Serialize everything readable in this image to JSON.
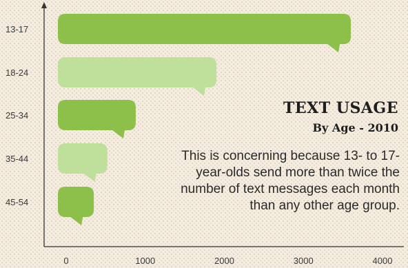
{
  "chart_data": {
    "type": "bar",
    "orientation": "horizontal",
    "title": "TEXT USAGE",
    "subtitle": "By Age - 2010",
    "annotation": "This is concerning because 13- to 17-year-olds send more than twice the number of text messages each month than any other age group.",
    "categories": [
      "13-17",
      "18-24",
      "25-34",
      "35-44",
      "45-54"
    ],
    "values": [
      3600,
      1900,
      880,
      520,
      350
    ],
    "xlim": [
      0,
      4000
    ],
    "xticks": [
      0,
      1000,
      2000,
      3000,
      4000
    ],
    "colors": {
      "dark_bar": "#8cc04a",
      "light_bar": "#bfe09a",
      "axis": "#333333"
    },
    "bar_shades": [
      "dark",
      "light",
      "dark",
      "light",
      "dark"
    ],
    "grid": false
  }
}
